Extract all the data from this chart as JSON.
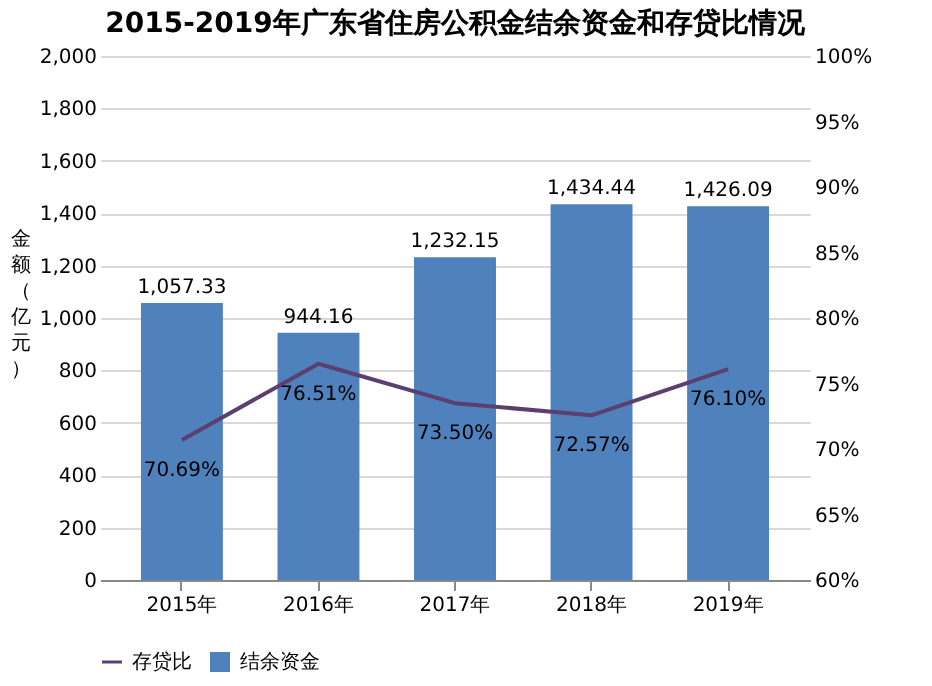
{
  "chart_data": {
    "type": "bar",
    "title": "2015-2019年广东省住房公积金结余资金和存贷比情况",
    "ylabel": "金额（亿元）",
    "categories": [
      "2015年",
      "2016年",
      "2017年",
      "2018年",
      "2019年"
    ],
    "series": [
      {
        "name": "结余资金",
        "color": "#4f81bd",
        "values": [
          1057.33,
          944.16,
          1232.15,
          1434.44,
          1426.09
        ],
        "value_labels": [
          "1,057.33",
          "944.16",
          "1,232.15",
          "1,434.44",
          "1,426.09"
        ]
      },
      {
        "name": "存贷比",
        "type": "line",
        "axis": "y2",
        "color": "#5b3f6e",
        "values": [
          70.69,
          76.51,
          73.5,
          72.57,
          76.1
        ],
        "value_labels": [
          "70.69%",
          "76.51%",
          "73.50%",
          "72.57%",
          "76.10%"
        ]
      }
    ],
    "ylim": [
      0,
      2000
    ],
    "yticks": [
      0,
      200,
      400,
      600,
      800,
      {
        "value": 1000,
        "label": "1,000"
      },
      {
        "value": 1200,
        "label": "1,200"
      },
      {
        "value": 1400,
        "label": "1,400"
      },
      {
        "value": 1600,
        "label": "1,600"
      },
      {
        "value": 1800,
        "label": "1,800"
      },
      {
        "value": 2000,
        "label": "2,000"
      }
    ],
    "y2lim": [
      60,
      100
    ],
    "y2ticks": [
      {
        "value": 60,
        "label": "60%"
      },
      {
        "value": 65,
        "label": "65%"
      },
      {
        "value": 70,
        "label": "70%"
      },
      {
        "value": 75,
        "label": "75%"
      },
      {
        "value": 80,
        "label": "80%"
      },
      {
        "value": 85,
        "label": "85%"
      },
      {
        "value": 90,
        "label": "90%"
      },
      {
        "value": 95,
        "label": "95%"
      },
      {
        "value": 100,
        "label": "100%"
      }
    ],
    "grid": "y",
    "legend": "bottom",
    "marker": "none",
    "line_style": "solid"
  }
}
